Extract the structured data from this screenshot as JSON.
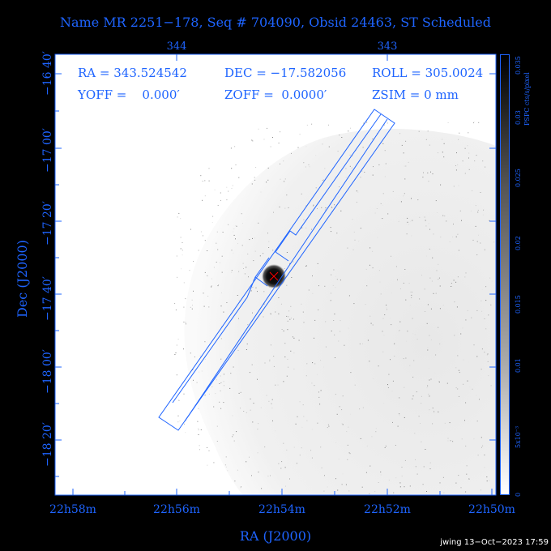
{
  "title": "Name MR 2251−178, Seq # 704090, Obsid 24463, ST Scheduled",
  "info": {
    "ra": "RA = 343.524542",
    "dec": "DEC = −17.582056",
    "roll": "ROLL = 305.0024",
    "yoff": "YOFF =    0.000′",
    "zoff": "ZOFF =  0.0000′",
    "zsim": "ZSIM = 0 mm"
  },
  "footer": "jwing 13−Oct−2023 17:59",
  "colors": {
    "accent": "#1e64ff",
    "background": "#000000",
    "plot_bg": "#ffffff",
    "source_marker": "#ff0000"
  },
  "chart_data": {
    "type": "heatmap",
    "title": "Name MR 2251−178, Seq # 704090, Obsid 24463, ST Scheduled",
    "xlabel": "RA (J2000)",
    "ylabel": "Dec (J2000)",
    "x_tick_labels": [
      "22h58m",
      "22h56m",
      "22h54m",
      "22h52m",
      "22h50m"
    ],
    "x_ticks_deg": [
      344.5,
      344.0,
      343.5,
      343.0,
      342.5
    ],
    "top_tick_labels": [
      "344",
      "343"
    ],
    "top_ticks_deg": [
      344,
      343
    ],
    "y_tick_labels": [
      "−16 40′",
      "−17 00′",
      "−17 20′",
      "−17 40′",
      "−18 00′",
      "−18 20′"
    ],
    "y_ticks_deg": [
      -16.6667,
      -17.0,
      -17.3333,
      -17.6667,
      -18.0,
      -18.3333
    ],
    "xlim": [
      344.58,
      342.5
    ],
    "ylim": [
      -18.58,
      -16.58
    ],
    "source": {
      "ra": 343.524542,
      "dec": -17.582056
    },
    "colorbar": {
      "label": "PSPC cts/s/pixel",
      "tick_labels": [
        "0",
        "5x10⁻³",
        "0.01",
        "0.015",
        "0.02",
        "0.025",
        "0.03",
        "0.035"
      ],
      "ticks": [
        0,
        0.005,
        0.01,
        0.015,
        0.02,
        0.025,
        0.03,
        0.035
      ],
      "range": [
        0,
        0.035
      ]
    },
    "grid": false
  }
}
